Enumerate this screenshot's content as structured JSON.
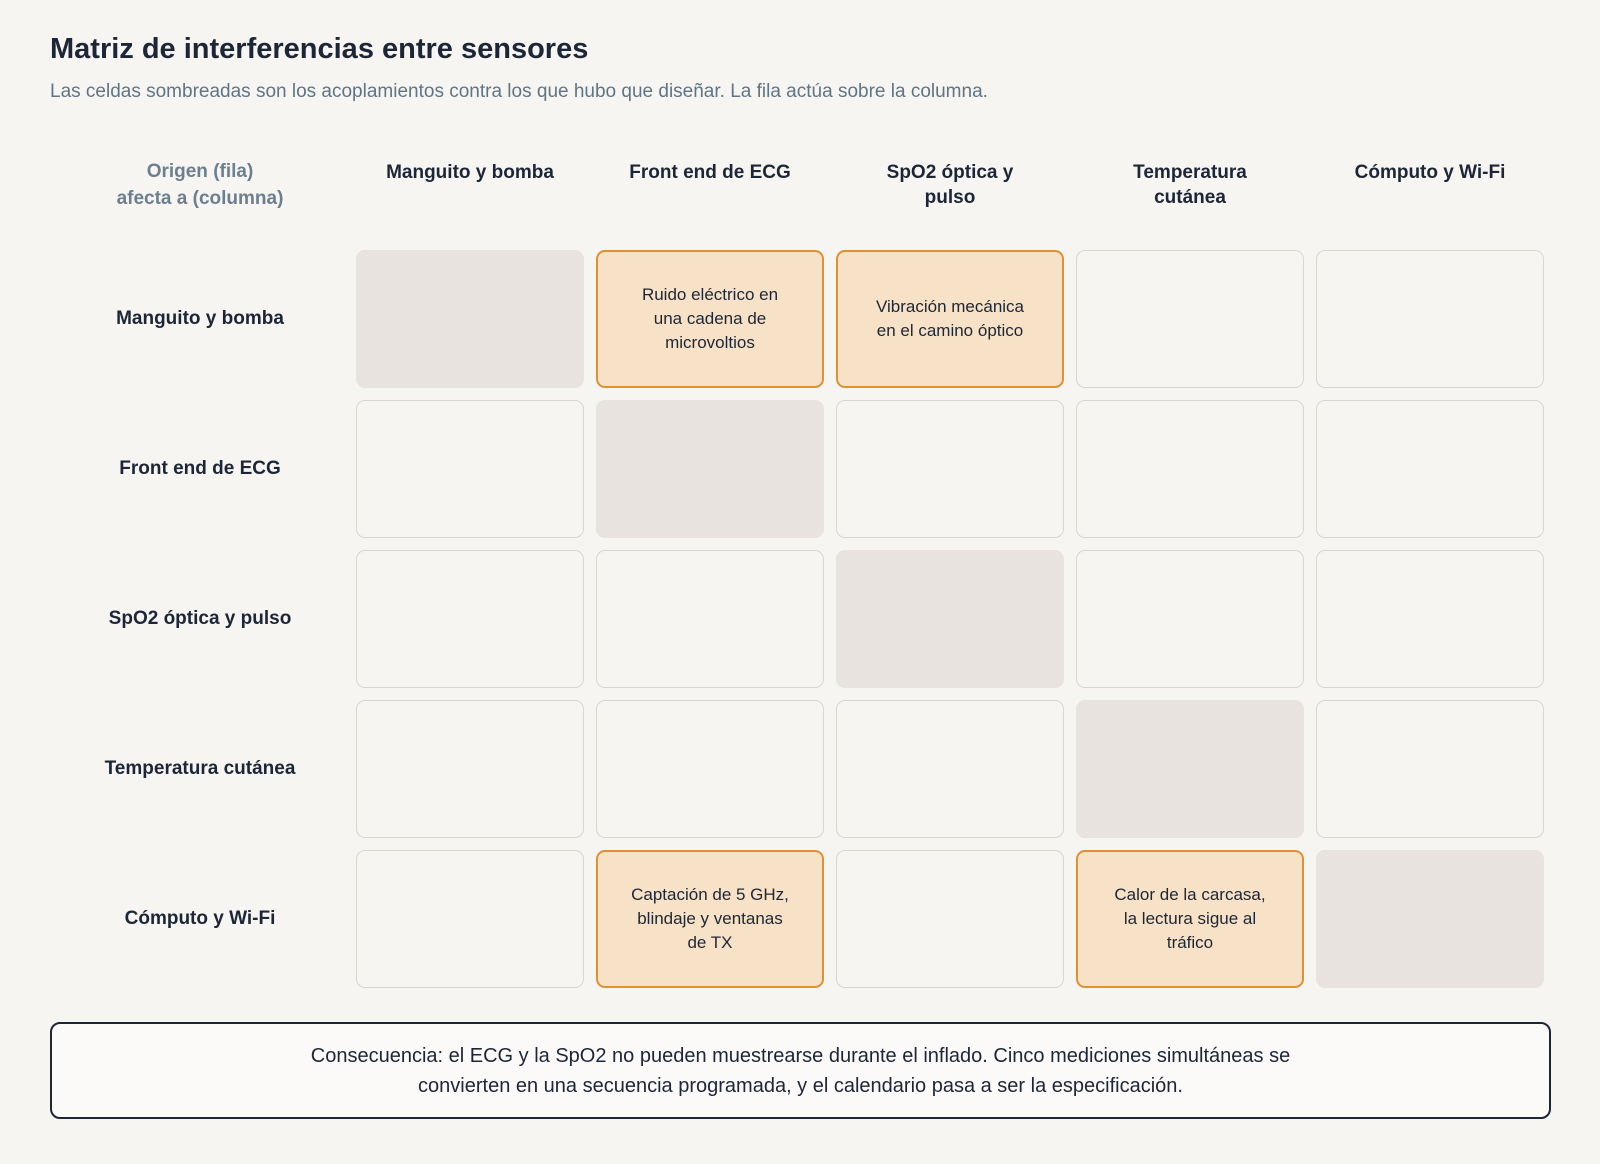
{
  "title": "Matriz de interferencias entre sensores",
  "subtitle": "Las celdas sombreadas son los acoplamientos contra los que hubo que diseñar. La fila actúa sobre la columna.",
  "corner": {
    "line1": "Origen (fila)",
    "line2": "afecta a (columna)"
  },
  "columns": [
    {
      "line1": "Manguito y bomba",
      "line2": ""
    },
    {
      "line1": "Front end de ECG",
      "line2": ""
    },
    {
      "line1": "SpO2 óptica y",
      "line2": "pulso"
    },
    {
      "line1": "Temperatura",
      "line2": "cutánea"
    },
    {
      "line1": "Cómputo y Wi-Fi",
      "line2": ""
    }
  ],
  "rows": [
    {
      "label": "Manguito y bomba"
    },
    {
      "label": "Front end de ECG"
    },
    {
      "label": "SpO2 óptica y pulso"
    },
    {
      "label": "Temperatura cutánea"
    },
    {
      "label": "Cómputo y Wi-Fi"
    }
  ],
  "cells": {
    "r0c1": {
      "line1": "Ruido eléctrico en",
      "line2": "una cadena de",
      "line3": "microvoltios"
    },
    "r0c2": {
      "line1": "Vibración mecánica",
      "line2": "en el camino óptico",
      "line3": ""
    },
    "r4c1": {
      "line1": "Captación de 5 GHz,",
      "line2": "blindaje y ventanas",
      "line3": "de TX"
    },
    "r4c3": {
      "line1": "Calor de la carcasa,",
      "line2": "la lectura sigue al",
      "line3": "tráfico"
    }
  },
  "note": {
    "line1": "Consecuencia: el ECG y la SpO2 no pueden muestrearse durante el inflado. Cinco mediciones simultáneas se",
    "line2": "convierten en una secuencia programada, y el calendario pasa a ser la especificación."
  },
  "colors": {
    "background": "#f7f5f2",
    "diagonal": "#e8e3de",
    "highlight_fill": "#f7e2c8",
    "highlight_border": "#dd9236",
    "text": "#1c2636",
    "muted": "#5f7585"
  }
}
